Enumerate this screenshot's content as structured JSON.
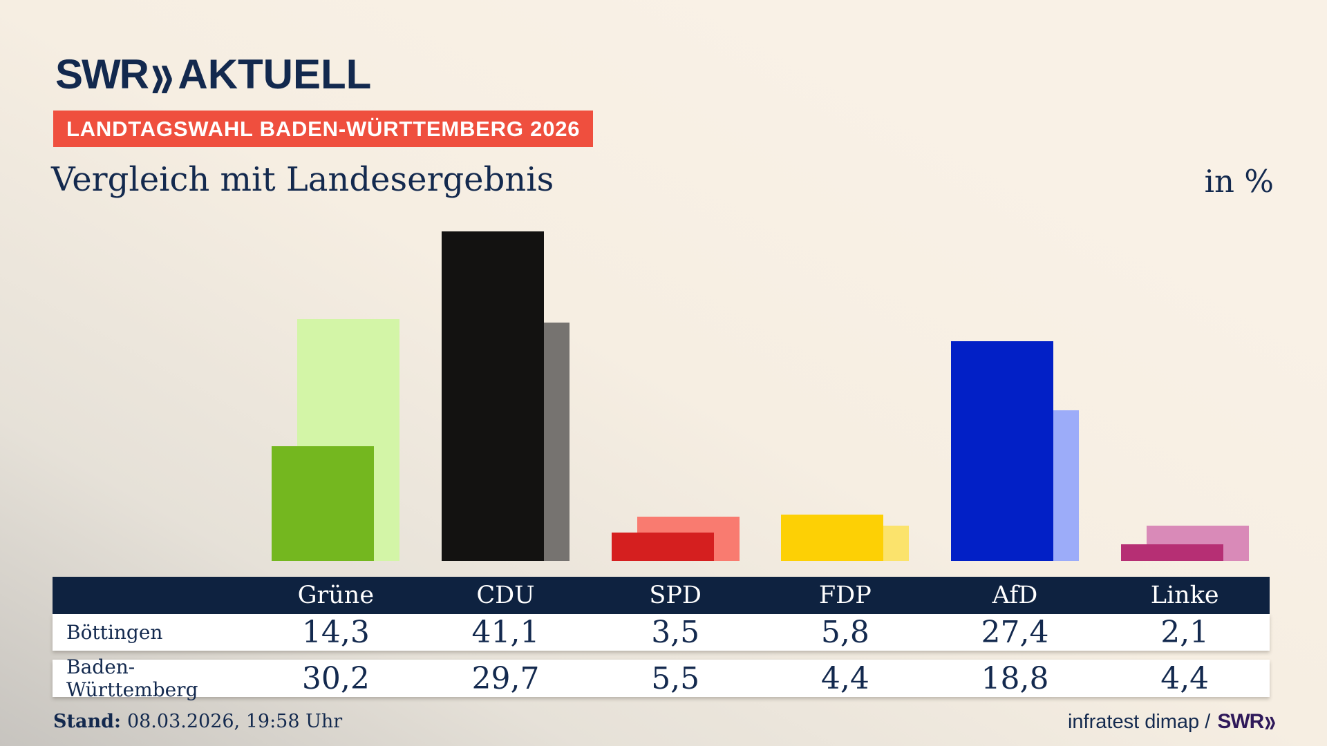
{
  "theme": {
    "navy": "#13294e",
    "header_bg": "#0e2240",
    "badge_bg": "#ef4f3e",
    "footer_brand": "#2f195a"
  },
  "brand": {
    "logo_text": "SWR",
    "logo_chevron": "»",
    "logo_suffix": "AKTUELL"
  },
  "badge": {
    "label": "LANDTAGSWAHL BADEN-WÜRTTEMBERG 2026"
  },
  "title": "Vergleich mit Landesergebnis",
  "unit_label": "in %",
  "chart_data": {
    "type": "bar",
    "title": "Vergleich mit Landesergebnis",
    "unit": "%",
    "categories": [
      "Grüne",
      "CDU",
      "SPD",
      "FDP",
      "AfD",
      "Linke"
    ],
    "series": [
      {
        "name": "Böttingen",
        "role": "foreground",
        "values": [
          14.3,
          41.1,
          3.5,
          5.8,
          27.4,
          2.1
        ]
      },
      {
        "name": "Baden-Württemberg",
        "role": "background",
        "values": [
          30.2,
          29.7,
          5.5,
          4.4,
          18.8,
          4.4
        ]
      }
    ],
    "value_labels": [
      [
        "14,3",
        "41,1",
        "3,5",
        "5,8",
        "27,4",
        "2,1"
      ],
      [
        "30,2",
        "29,7",
        "5,5",
        "4,4",
        "18,8",
        "4,4"
      ]
    ],
    "party_colors_foreground": [
      "#74b71f",
      "#131211",
      "#d51f1f",
      "#fdd005",
      "#0220c6",
      "#b62f74"
    ],
    "party_colors_background": [
      "#d3f5a7",
      "#767370",
      "#f97b70",
      "#fbe36c",
      "#9cacf9",
      "#d98ab8"
    ],
    "ylim": [
      0,
      47
    ],
    "grid": false,
    "legend_position": "table-rows"
  },
  "footer": {
    "stand_label": "Stand:",
    "stand_value": "08.03.2026, 19:58 Uhr",
    "source": "infratest dimap /",
    "source_brand": "SWR",
    "source_brand_chevron": "»"
  }
}
